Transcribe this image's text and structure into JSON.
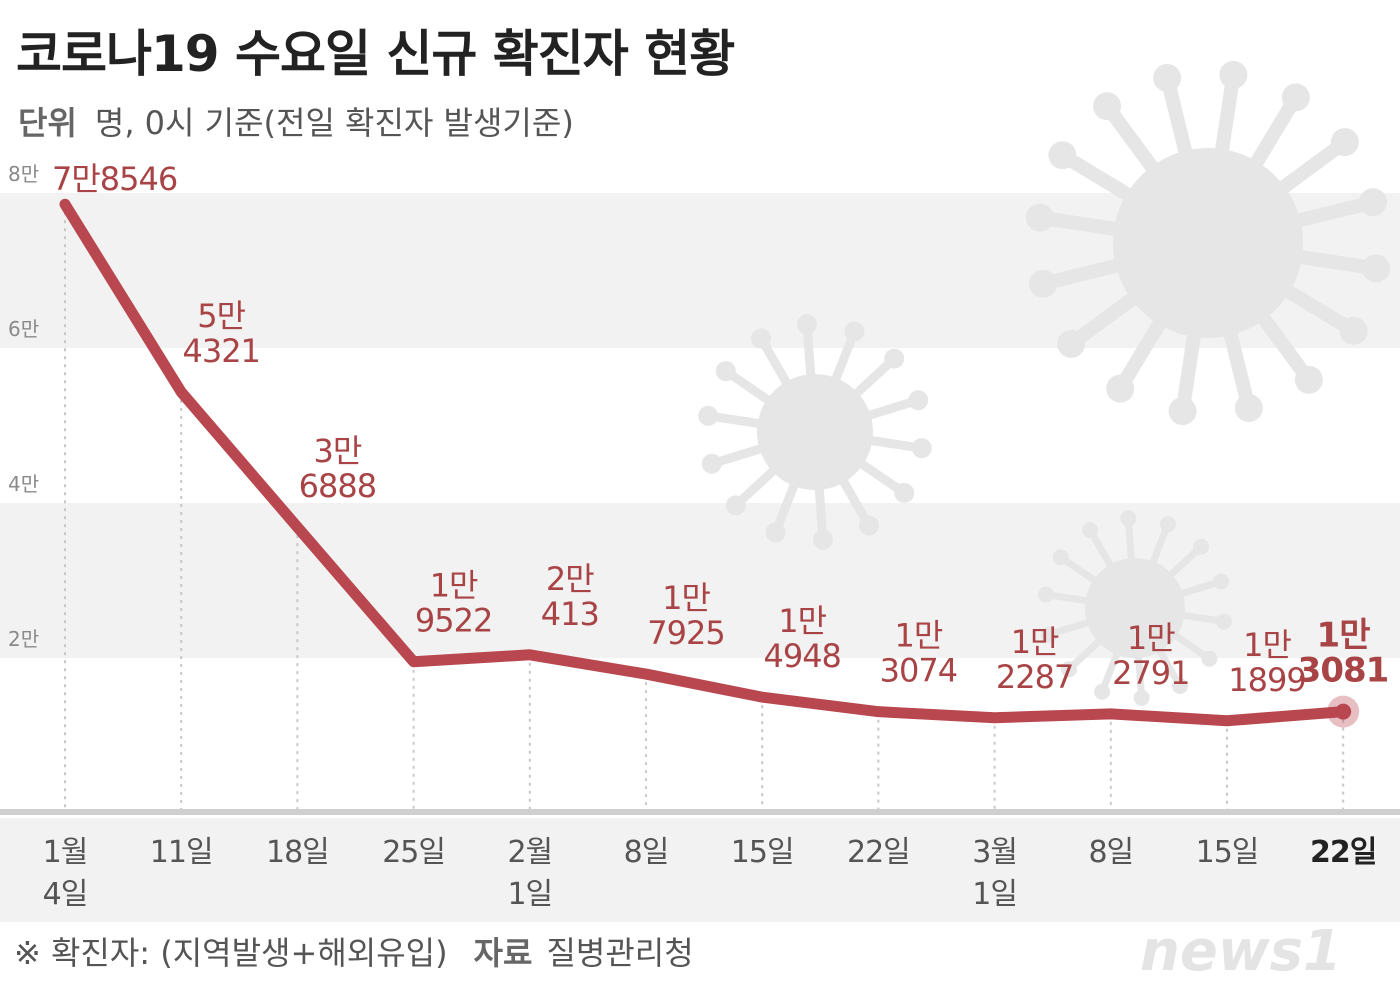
{
  "header": {
    "title": "코로나19 수요일 신규 확진자 현황",
    "unit_label": "단위",
    "unit_text": "명, 0시 기준(전일 확진자 발생기준)"
  },
  "footer": {
    "note": "※ 확진자: (지역발생+해외유입)",
    "source_label": "자료",
    "source": "질병관리청"
  },
  "logo": {
    "text": "news1"
  },
  "colors": {
    "line": "#b9474f",
    "label": "#a94446",
    "band": "#f2f2f2",
    "virus": "#e6e6e6"
  },
  "chart_data": {
    "type": "line",
    "title": "코로나19 수요일 신규 확진자 현황",
    "ylim": [
      0,
      80000
    ],
    "yticks": [
      {
        "value": 20000,
        "label": "2만"
      },
      {
        "value": 40000,
        "label": "4만"
      },
      {
        "value": 60000,
        "label": "6만"
      },
      {
        "value": 80000,
        "label": "8만"
      }
    ],
    "grid": "horizontal bands",
    "categories": [
      "1월 4일",
      "11일",
      "18일",
      "25일",
      "2월 1일",
      "8일",
      "15일",
      "22일",
      "3월 1일",
      "8일",
      "15일",
      "22일"
    ],
    "x_labels": [
      [
        "1월",
        "4일"
      ],
      [
        "11일"
      ],
      [
        "18일"
      ],
      [
        "25일"
      ],
      [
        "2월",
        "1일"
      ],
      [
        "8일"
      ],
      [
        "15일"
      ],
      [
        "22일"
      ],
      [
        "3월",
        "1일"
      ],
      [
        "8일"
      ],
      [
        "15일"
      ],
      [
        "22일"
      ]
    ],
    "values": [
      78546,
      54321,
      36888,
      19522,
      20413,
      17925,
      14948,
      13074,
      12287,
      12791,
      11899,
      13081
    ],
    "data_labels": [
      [
        "7만8546"
      ],
      [
        "5만",
        "4321"
      ],
      [
        "3만",
        "6888"
      ],
      [
        "1만",
        "9522"
      ],
      [
        "2만",
        "413"
      ],
      [
        "1만",
        "7925"
      ],
      [
        "1만",
        "4948"
      ],
      [
        "1만",
        "3074"
      ],
      [
        "1만",
        "2287"
      ],
      [
        "1만",
        "2791"
      ],
      [
        "1만",
        "1899"
      ],
      [
        "1만",
        "3081"
      ]
    ],
    "highlight_index": 11
  }
}
